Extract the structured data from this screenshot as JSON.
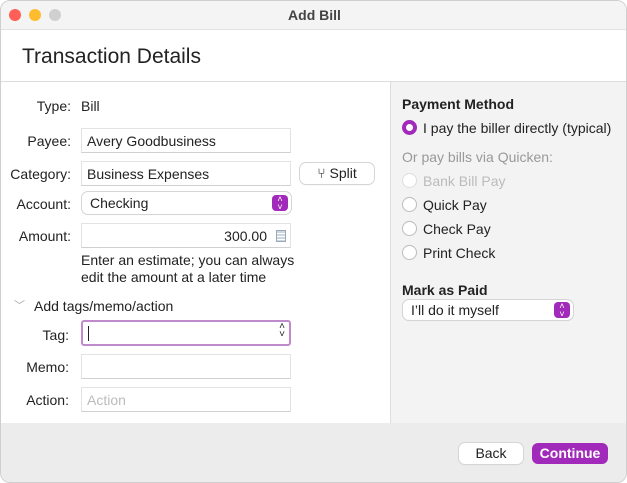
{
  "window": {
    "title": "Add Bill"
  },
  "header": {
    "title": "Transaction Details"
  },
  "form": {
    "type_label": "Type:",
    "type_value": "Bill",
    "payee_label": "Payee:",
    "payee_value": "Avery Goodbusiness",
    "category_label": "Category:",
    "category_value": "Business Expenses",
    "split_label": "Split",
    "account_label": "Account:",
    "account_value": "Checking",
    "amount_label": "Amount:",
    "amount_value": "300.00",
    "amount_hint_1": "Enter an estimate; you can always",
    "amount_hint_2": "edit the amount at a later time",
    "disclosure_label": "Add tags/memo/action",
    "tag_label": "Tag:",
    "tag_value": "",
    "memo_label": "Memo:",
    "memo_value": "",
    "action_label": "Action:",
    "action_placeholder": "Action"
  },
  "payment": {
    "heading": "Payment Method",
    "direct_label": "I pay the biller directly (typical)",
    "via_label": "Or pay bills via Quicken:",
    "options": [
      {
        "label": "Bank Bill Pay",
        "disabled": true
      },
      {
        "label": "Quick Pay"
      },
      {
        "label": "Check Pay"
      },
      {
        "label": "Print Check"
      }
    ],
    "selected": "I pay the biller directly (typical)"
  },
  "mark_paid": {
    "heading": "Mark as Paid",
    "value": "I’ll do it myself"
  },
  "footer": {
    "back_label": "Back",
    "continue_label": "Continue"
  },
  "colors": {
    "accent": "#a12aba",
    "close": "#ff5f57",
    "minimize": "#febc2e",
    "zoom": "#d0d0d0"
  }
}
